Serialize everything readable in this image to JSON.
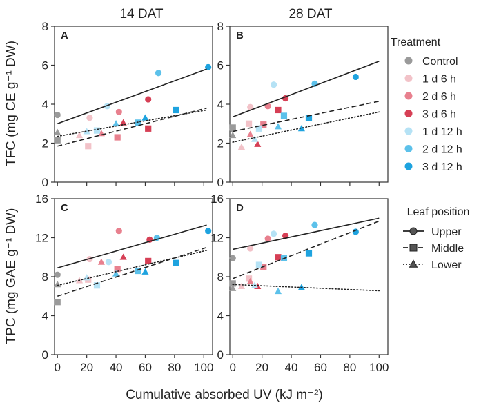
{
  "figure": {
    "x_axis_label": "Cumulative absorbed UV (kJ m⁻²)",
    "col_titles": [
      "14 DAT",
      "28 DAT"
    ],
    "row_labels": [
      "TFC (mg CE g⁻¹ DW)",
      "TPC (mg GAE g⁻¹ DW)"
    ],
    "legend_treatment": {
      "title": "Treatment",
      "items": [
        {
          "label": "Control",
          "color": "#9a9a9a"
        },
        {
          "label": "1 d 6 h",
          "color": "#f2c2c8"
        },
        {
          "label": "2 d 6 h",
          "color": "#e8808e"
        },
        {
          "label": "3 d 6 h",
          "color": "#d63f55"
        },
        {
          "label": "1 d 12 h",
          "color": "#b5e2f5"
        },
        {
          "label": "2 d 12 h",
          "color": "#5cc1ea"
        },
        {
          "label": "3 d 12 h",
          "color": "#1ea3df"
        }
      ]
    },
    "legend_position": {
      "title": "Leaf position",
      "items": [
        {
          "label": "Upper",
          "line": "solid",
          "marker": "circle"
        },
        {
          "label": "Middle",
          "line": "dashed",
          "marker": "square"
        },
        {
          "label": "Lower",
          "line": "dotted",
          "marker": "triangle"
        }
      ]
    }
  },
  "chart_data": [
    {
      "type": "scatter",
      "panel": "A",
      "title": "14 DAT",
      "ylabel": "TFC (mg CE g⁻¹ DW)",
      "xlabel": "Cumulative absorbed UV (kJ m⁻²)",
      "xlim": [
        -2,
        106
      ],
      "ylim": [
        0,
        8
      ],
      "xticks": [
        0,
        20,
        40,
        60,
        80,
        100
      ],
      "yticks": [
        0,
        2,
        4,
        6,
        8
      ],
      "points": [
        {
          "t": 0,
          "p": "Upper",
          "x": 0,
          "y": 3.45
        },
        {
          "t": 0,
          "p": "Middle",
          "x": 0,
          "y": 2.15
        },
        {
          "t": 0,
          "p": "Lower",
          "x": 0,
          "y": 2.55
        },
        {
          "t": 1,
          "p": "Upper",
          "x": 22,
          "y": 3.3
        },
        {
          "t": 1,
          "p": "Middle",
          "x": 21,
          "y": 1.85
        },
        {
          "t": 1,
          "p": "Lower",
          "x": 15,
          "y": 2.4
        },
        {
          "t": 2,
          "p": "Upper",
          "x": 42,
          "y": 3.6
        },
        {
          "t": 2,
          "p": "Middle",
          "x": 41,
          "y": 2.3
        },
        {
          "t": 2,
          "p": "Lower",
          "x": 30,
          "y": 2.5
        },
        {
          "t": 3,
          "p": "Upper",
          "x": 62,
          "y": 4.25
        },
        {
          "t": 3,
          "p": "Middle",
          "x": 62,
          "y": 2.75
        },
        {
          "t": 3,
          "p": "Lower",
          "x": 45,
          "y": 3.05
        },
        {
          "t": 4,
          "p": "Upper",
          "x": 34,
          "y": 3.9
        },
        {
          "t": 4,
          "p": "Middle",
          "x": 27,
          "y": 2.65
        },
        {
          "t": 4,
          "p": "Lower",
          "x": 20,
          "y": 2.6
        },
        {
          "t": 5,
          "p": "Upper",
          "x": 69,
          "y": 5.6
        },
        {
          "t": 5,
          "p": "Middle",
          "x": 55,
          "y": 3.05
        },
        {
          "t": 5,
          "p": "Lower",
          "x": 40,
          "y": 3.0
        },
        {
          "t": 6,
          "p": "Upper",
          "x": 103,
          "y": 5.9
        },
        {
          "t": 6,
          "p": "Middle",
          "x": 81,
          "y": 3.7
        },
        {
          "t": 6,
          "p": "Lower",
          "x": 60,
          "y": 3.3
        }
      ],
      "fits": [
        {
          "p": "Upper",
          "x": [
            0,
            102
          ],
          "y": [
            3.0,
            5.8
          ]
        },
        {
          "p": "Middle",
          "x": [
            0,
            102
          ],
          "y": [
            1.85,
            3.8
          ]
        },
        {
          "p": "Lower",
          "x": [
            0,
            102
          ],
          "y": [
            2.35,
            3.7
          ]
        }
      ]
    },
    {
      "type": "scatter",
      "panel": "B",
      "title": "28 DAT",
      "xlim": [
        -2,
        106
      ],
      "ylim": [
        0,
        8
      ],
      "xticks": [
        0,
        20,
        40,
        60,
        80,
        100
      ],
      "yticks": [
        0,
        2,
        4,
        6,
        8
      ],
      "points": [
        {
          "t": 0,
          "p": "Upper",
          "x": 0,
          "y": 2.7
        },
        {
          "t": 0,
          "p": "Middle",
          "x": 0,
          "y": 2.8
        },
        {
          "t": 0,
          "p": "Lower",
          "x": 0,
          "y": 2.4
        },
        {
          "t": 1,
          "p": "Upper",
          "x": 12,
          "y": 3.85
        },
        {
          "t": 1,
          "p": "Middle",
          "x": 11,
          "y": 3.0
        },
        {
          "t": 1,
          "p": "Lower",
          "x": 6,
          "y": 1.8
        },
        {
          "t": 2,
          "p": "Upper",
          "x": 24,
          "y": 3.9
        },
        {
          "t": 2,
          "p": "Middle",
          "x": 21,
          "y": 2.95
        },
        {
          "t": 2,
          "p": "Lower",
          "x": 12,
          "y": 2.45
        },
        {
          "t": 3,
          "p": "Upper",
          "x": 36,
          "y": 4.3
        },
        {
          "t": 3,
          "p": "Middle",
          "x": 31,
          "y": 3.7
        },
        {
          "t": 3,
          "p": "Lower",
          "x": 17,
          "y": 1.95
        },
        {
          "t": 4,
          "p": "Upper",
          "x": 28,
          "y": 5.0
        },
        {
          "t": 4,
          "p": "Middle",
          "x": 18,
          "y": 2.75
        },
        {
          "t": 4,
          "p": "Lower",
          "x": 15,
          "y": 2.2
        },
        {
          "t": 5,
          "p": "Upper",
          "x": 56,
          "y": 5.05
        },
        {
          "t": 5,
          "p": "Middle",
          "x": 35,
          "y": 3.4
        },
        {
          "t": 5,
          "p": "Lower",
          "x": 31,
          "y": 2.85
        },
        {
          "t": 6,
          "p": "Upper",
          "x": 84,
          "y": 5.4
        },
        {
          "t": 6,
          "p": "Middle",
          "x": 52,
          "y": 3.3
        },
        {
          "t": 6,
          "p": "Lower",
          "x": 47,
          "y": 2.75
        }
      ],
      "fits": [
        {
          "p": "Upper",
          "x": [
            0,
            100
          ],
          "y": [
            3.35,
            6.2
          ]
        },
        {
          "p": "Middle",
          "x": [
            0,
            100
          ],
          "y": [
            2.6,
            4.15
          ]
        },
        {
          "p": "Lower",
          "x": [
            0,
            100
          ],
          "y": [
            2.05,
            3.6
          ]
        }
      ]
    },
    {
      "type": "scatter",
      "panel": "C",
      "title": "14 DAT",
      "ylabel": "TPC (mg GAE g⁻¹ DW)",
      "xlabel": "Cumulative absorbed UV (kJ m⁻²)",
      "xlim": [
        -2,
        106
      ],
      "ylim": [
        0,
        16
      ],
      "xticks": [
        0,
        20,
        40,
        60,
        80,
        100
      ],
      "yticks": [
        0,
        4,
        8,
        12,
        16
      ],
      "points": [
        {
          "t": 0,
          "p": "Upper",
          "x": 0,
          "y": 8.2
        },
        {
          "t": 0,
          "p": "Middle",
          "x": 0,
          "y": 5.4
        },
        {
          "t": 0,
          "p": "Lower",
          "x": 0,
          "y": 7.2
        },
        {
          "t": 1,
          "p": "Upper",
          "x": 22,
          "y": 9.8
        },
        {
          "t": 1,
          "p": "Middle",
          "x": 21,
          "y": 7.7
        },
        {
          "t": 1,
          "p": "Lower",
          "x": 15,
          "y": 7.6
        },
        {
          "t": 2,
          "p": "Upper",
          "x": 42,
          "y": 12.7
        },
        {
          "t": 2,
          "p": "Middle",
          "x": 41,
          "y": 8.8
        },
        {
          "t": 2,
          "p": "Lower",
          "x": 30,
          "y": 9.5
        },
        {
          "t": 3,
          "p": "Upper",
          "x": 63,
          "y": 11.8
        },
        {
          "t": 3,
          "p": "Middle",
          "x": 62,
          "y": 9.6
        },
        {
          "t": 3,
          "p": "Lower",
          "x": 45,
          "y": 10.0
        },
        {
          "t": 4,
          "p": "Upper",
          "x": 35,
          "y": 9.5
        },
        {
          "t": 4,
          "p": "Middle",
          "x": 27,
          "y": 7.1
        },
        {
          "t": 4,
          "p": "Lower",
          "x": 20,
          "y": 7.9
        },
        {
          "t": 5,
          "p": "Upper",
          "x": 68,
          "y": 12.0
        },
        {
          "t": 5,
          "p": "Middle",
          "x": 55,
          "y": 8.6
        },
        {
          "t": 5,
          "p": "Lower",
          "x": 40,
          "y": 8.3
        },
        {
          "t": 6,
          "p": "Upper",
          "x": 103,
          "y": 12.7
        },
        {
          "t": 6,
          "p": "Middle",
          "x": 81,
          "y": 9.4
        },
        {
          "t": 6,
          "p": "Lower",
          "x": 60,
          "y": 8.5
        }
      ],
      "fits": [
        {
          "p": "Upper",
          "x": [
            0,
            102
          ],
          "y": [
            8.9,
            13.3
          ]
        },
        {
          "p": "Middle",
          "x": [
            0,
            102
          ],
          "y": [
            6.0,
            11.0
          ]
        },
        {
          "p": "Lower",
          "x": [
            0,
            102
          ],
          "y": [
            7.1,
            10.7
          ]
        }
      ]
    },
    {
      "type": "scatter",
      "panel": "D",
      "title": "28 DAT",
      "xlim": [
        -2,
        106
      ],
      "ylim": [
        0,
        16
      ],
      "xticks": [
        0,
        20,
        40,
        60,
        80,
        100
      ],
      "yticks": [
        0,
        4,
        8,
        12,
        16
      ],
      "points": [
        {
          "t": 0,
          "p": "Upper",
          "x": 0,
          "y": 9.9
        },
        {
          "t": 0,
          "p": "Middle",
          "x": 0,
          "y": 7.3
        },
        {
          "t": 0,
          "p": "Lower",
          "x": 0,
          "y": 6.8
        },
        {
          "t": 1,
          "p": "Upper",
          "x": 12,
          "y": 10.9
        },
        {
          "t": 1,
          "p": "Middle",
          "x": 11,
          "y": 7.8
        },
        {
          "t": 1,
          "p": "Lower",
          "x": 6,
          "y": 7.0
        },
        {
          "t": 2,
          "p": "Upper",
          "x": 24,
          "y": 11.9
        },
        {
          "t": 2,
          "p": "Middle",
          "x": 21,
          "y": 9.0
        },
        {
          "t": 2,
          "p": "Lower",
          "x": 12,
          "y": 7.5
        },
        {
          "t": 3,
          "p": "Upper",
          "x": 36,
          "y": 12.2
        },
        {
          "t": 3,
          "p": "Middle",
          "x": 31,
          "y": 10.0
        },
        {
          "t": 3,
          "p": "Lower",
          "x": 17,
          "y": 7.0
        },
        {
          "t": 4,
          "p": "Upper",
          "x": 28,
          "y": 12.4
        },
        {
          "t": 4,
          "p": "Middle",
          "x": 18,
          "y": 9.2
        },
        {
          "t": 4,
          "p": "Lower",
          "x": 15,
          "y": 7.1
        },
        {
          "t": 5,
          "p": "Upper",
          "x": 56,
          "y": 13.3
        },
        {
          "t": 5,
          "p": "Middle",
          "x": 35,
          "y": 9.9
        },
        {
          "t": 5,
          "p": "Lower",
          "x": 31,
          "y": 6.5
        },
        {
          "t": 6,
          "p": "Upper",
          "x": 84,
          "y": 12.6
        },
        {
          "t": 6,
          "p": "Middle",
          "x": 52,
          "y": 10.4
        },
        {
          "t": 6,
          "p": "Lower",
          "x": 47,
          "y": 6.9
        }
      ],
      "fits": [
        {
          "p": "Upper",
          "x": [
            0,
            100
          ],
          "y": [
            10.8,
            14.0
          ]
        },
        {
          "p": "Middle",
          "x": [
            0,
            100
          ],
          "y": [
            7.8,
            13.7
          ]
        },
        {
          "p": "Lower",
          "x": [
            0,
            100
          ],
          "y": [
            7.2,
            6.55
          ]
        }
      ]
    }
  ]
}
